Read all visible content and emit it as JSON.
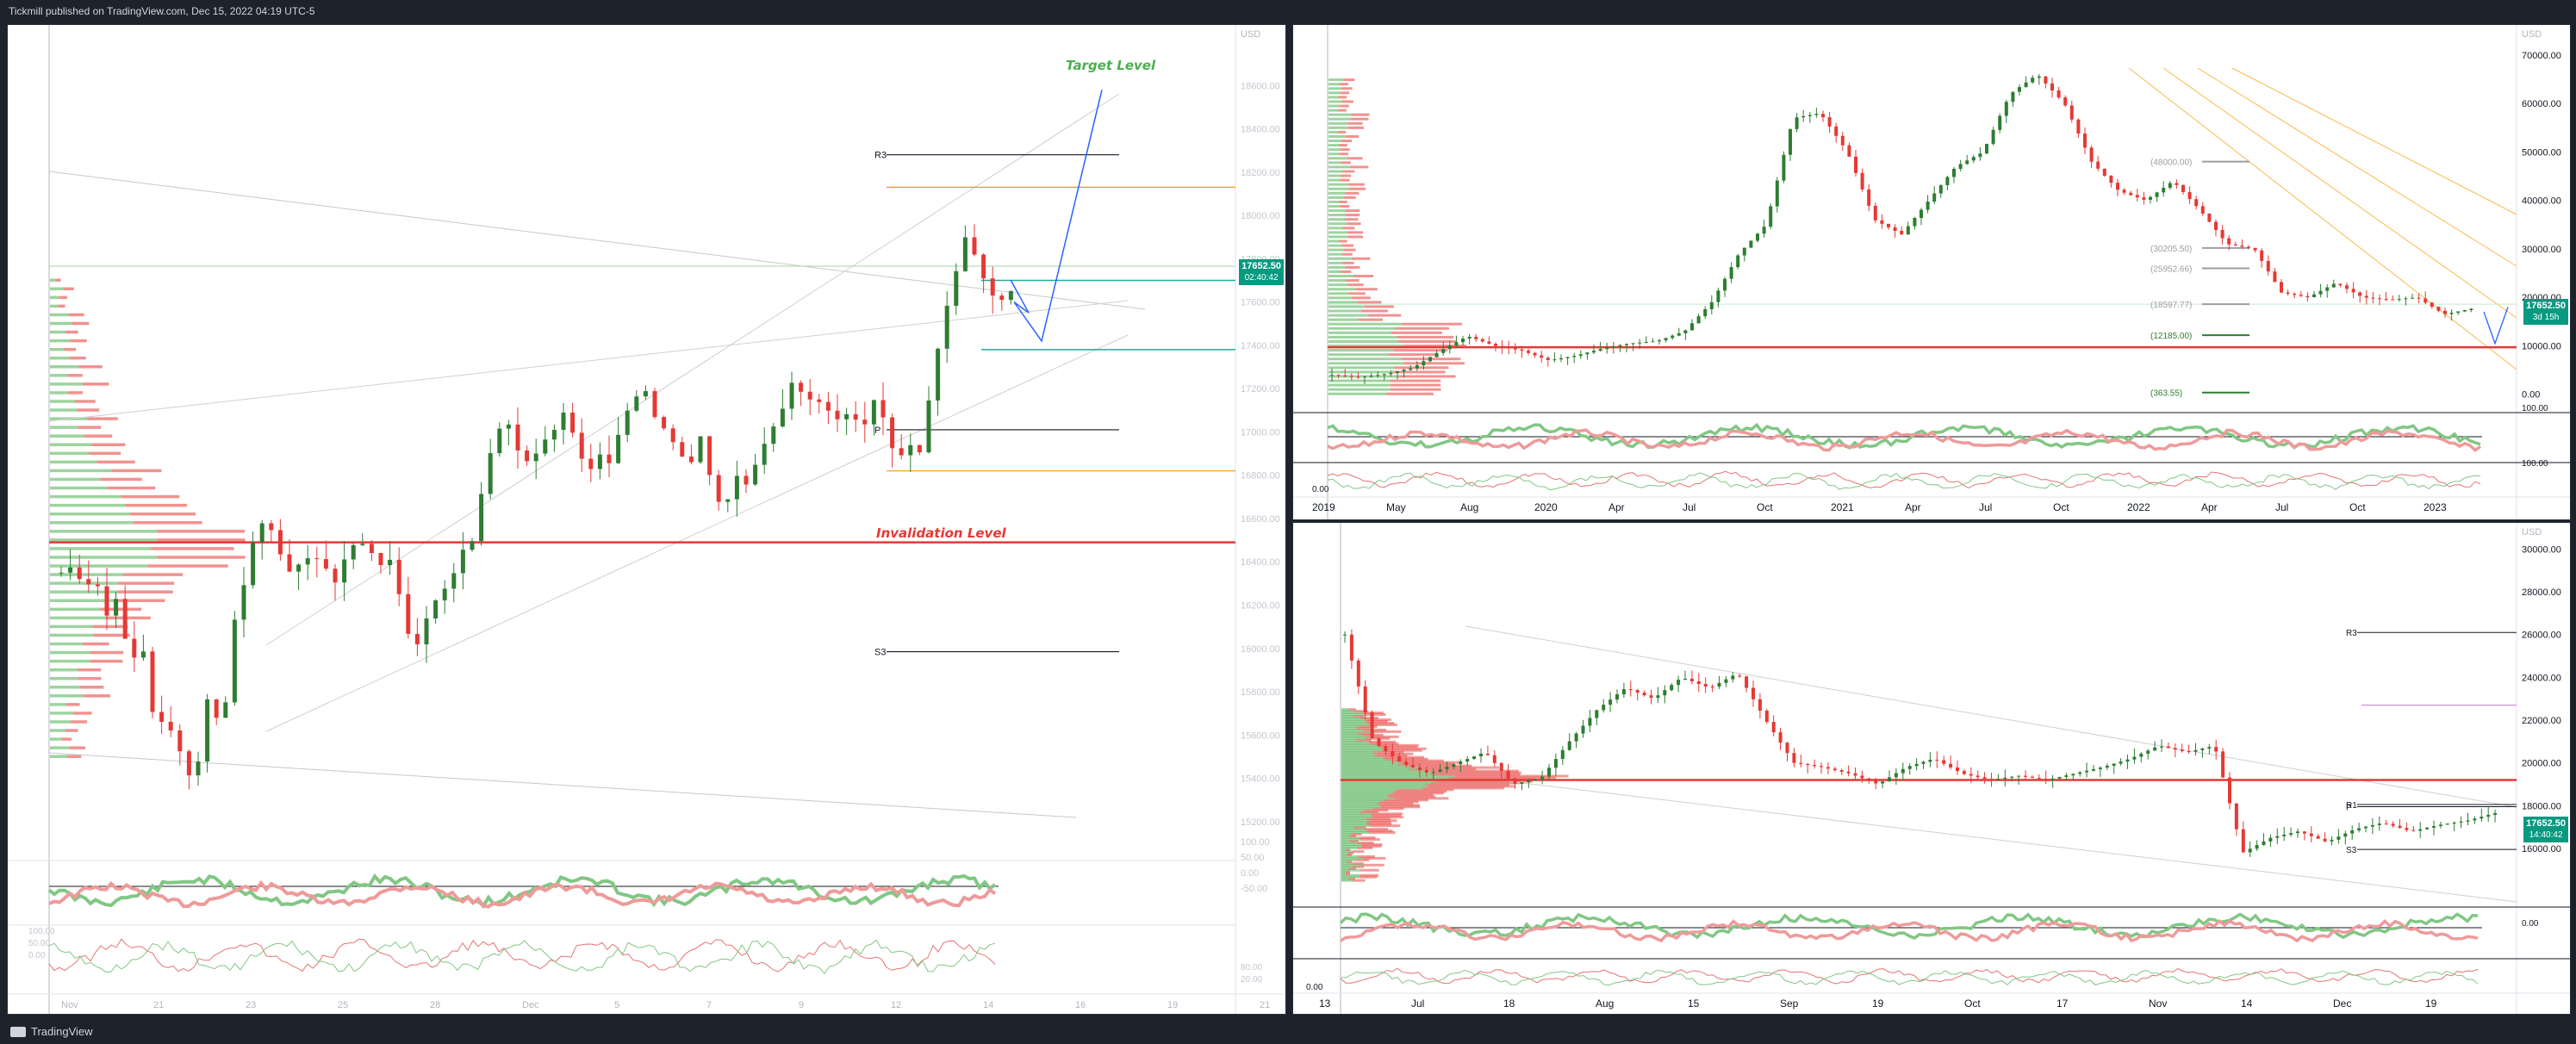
{
  "header": {
    "publisher_line": "Tickmill published on TradingView.com, Dec 15, 2022 04:19 UTC-5"
  },
  "footer": {
    "brand": "TradingView"
  },
  "colors": {
    "up": "#2e7d32",
    "down": "#e53935",
    "accent": "#2962ff",
    "price_tag": "#089981"
  },
  "chart_data": [
    {
      "type": "candlestick",
      "panel": "left",
      "ylim": [
        15100,
        18800
      ],
      "y_ticks": [
        18600,
        18400,
        18200,
        18000,
        17800,
        17600,
        17400,
        17200,
        17000,
        16800,
        16600,
        16400,
        16200,
        16000,
        15800,
        15600,
        15400,
        15200
      ],
      "y_tick_labels": [
        "18600.00",
        "18400.00",
        "18200.00",
        "18000.00",
        "17800.00",
        "17600.00",
        "17400.00",
        "17200.00",
        "17000.00",
        "16800.00",
        "16600.00",
        "16400.00",
        "16200.00",
        "16000.00",
        "15800.00",
        "15600.00",
        "15400.00",
        "15200.00"
      ],
      "axis_currency": "USD",
      "x_tick_labels": [
        "Nov",
        "21",
        "23",
        "25",
        "28",
        "Dec",
        "5",
        "7",
        "9",
        "12",
        "14",
        "16",
        "19",
        "21"
      ],
      "last_price": "17652.50",
      "countdown": "02:40:42",
      "levels": [
        {
          "label": "R3",
          "value": 18280
        },
        {
          "label": "P",
          "value": 17010
        },
        {
          "label": "S3",
          "value": 15985
        }
      ],
      "orange_levels": [
        18130,
        16820
      ],
      "green_lines": [
        17700,
        17380
      ],
      "invalidation_level": 16490,
      "annotations": {
        "target": "Target Level",
        "invalidation": "Invalidation Level"
      },
      "indicator_ticks": [
        "100.00",
        "50.00",
        "0.00",
        "-50.00"
      ],
      "stoch_ticks": [
        "100.00",
        "50.00",
        "0.00",
        "80.00",
        "20.00"
      ],
      "candles_anchor": [
        [
          16350,
          16380,
          16280
        ],
        [
          16320,
          16150,
          16250
        ],
        [
          15900,
          16050,
          15700
        ],
        [
          15650,
          15600,
          15400
        ],
        [
          15480,
          15850,
          15550
        ],
        [
          16100,
          16300,
          16550
        ],
        [
          16600,
          16450,
          16350
        ],
        [
          16400,
          16430,
          16380
        ],
        [
          16300,
          16450,
          16500
        ],
        [
          16450,
          16380,
          16420
        ],
        [
          16100,
          16000,
          16150
        ],
        [
          16250,
          16300,
          16450
        ],
        [
          16500,
          16800,
          17000
        ],
        [
          17050,
          16900,
          16850
        ],
        [
          16950,
          17000,
          17100
        ],
        [
          16950,
          16800,
          16900
        ],
        [
          16850,
          17050,
          17150
        ],
        [
          17200,
          17050,
          17000
        ],
        [
          16900,
          16850,
          17000
        ],
        [
          16700,
          16650,
          16800
        ],
        [
          16750,
          16900,
          17000
        ],
        [
          17100,
          17250,
          17150
        ],
        [
          17150,
          17100,
          17050
        ],
        [
          17100,
          17000,
          17150
        ],
        [
          17050,
          16850,
          16950
        ],
        [
          16900,
          17200,
          17500
        ],
        [
          17700,
          17900,
          17800
        ],
        [
          17650,
          17600,
          17650
        ]
      ]
    },
    {
      "type": "candlestick",
      "panel": "top-right",
      "ylim": [
        -2000,
        73000
      ],
      "y_ticks": [
        70000,
        60000,
        50000,
        40000,
        30000,
        20000,
        10000,
        0
      ],
      "y_tick_labels": [
        "70000.00",
        "60000.00",
        "50000.00",
        "40000.00",
        "30000.00",
        "20000.00",
        "10000.00",
        "0.00"
      ],
      "axis_currency": "USD",
      "x_tick_labels": [
        "2019",
        "May",
        "Aug",
        "2020",
        "Apr",
        "Jul",
        "Oct",
        "2021",
        "Apr",
        "Jul",
        "Oct",
        "2022",
        "Apr",
        "Jul",
        "Oct",
        "2023"
      ],
      "last_price": "17652.50",
      "countdown": "3d 15h",
      "fib_levels": [
        {
          "label": "(48000.00)",
          "value": 48000
        },
        {
          "label": "(30205.50)",
          "value": 30200
        },
        {
          "label": "(25952.66)",
          "value": 26000
        },
        {
          "label": "(18597.77)",
          "value": 18600
        },
        {
          "label": "(12185.00)",
          "value": 12185
        },
        {
          "label": "(363.55)",
          "value": 363
        }
      ],
      "support_level": 9700,
      "indicator_ticks": [
        "100.00",
        "100.00",
        "0.00"
      ]
    },
    {
      "type": "candlestick",
      "panel": "bottom-right",
      "ylim": [
        13500,
        30500
      ],
      "y_ticks": [
        30000,
        28000,
        26000,
        24000,
        22000,
        20000,
        18000,
        16000
      ],
      "y_tick_labels": [
        "30000.00",
        "28000.00",
        "26000.00",
        "24000.00",
        "22000.00",
        "20000.00",
        "18000.00",
        "16000.00"
      ],
      "axis_currency": "USD",
      "x_tick_labels": [
        "13",
        "Jul",
        "18",
        "Aug",
        "15",
        "Sep",
        "19",
        "Oct",
        "17",
        "Nov",
        "14",
        "Dec",
        "19"
      ],
      "last_price": "17652.50",
      "countdown": "14:40:42",
      "levels": [
        {
          "label": "R3",
          "value": 26100
        },
        {
          "label": "R1",
          "value": 18050
        },
        {
          "label": "P",
          "value": 17950
        },
        {
          "label": "S3",
          "value": 15950
        }
      ],
      "support_level": 19200,
      "indicator_ticks": [
        "0.00",
        "0.00"
      ]
    }
  ]
}
